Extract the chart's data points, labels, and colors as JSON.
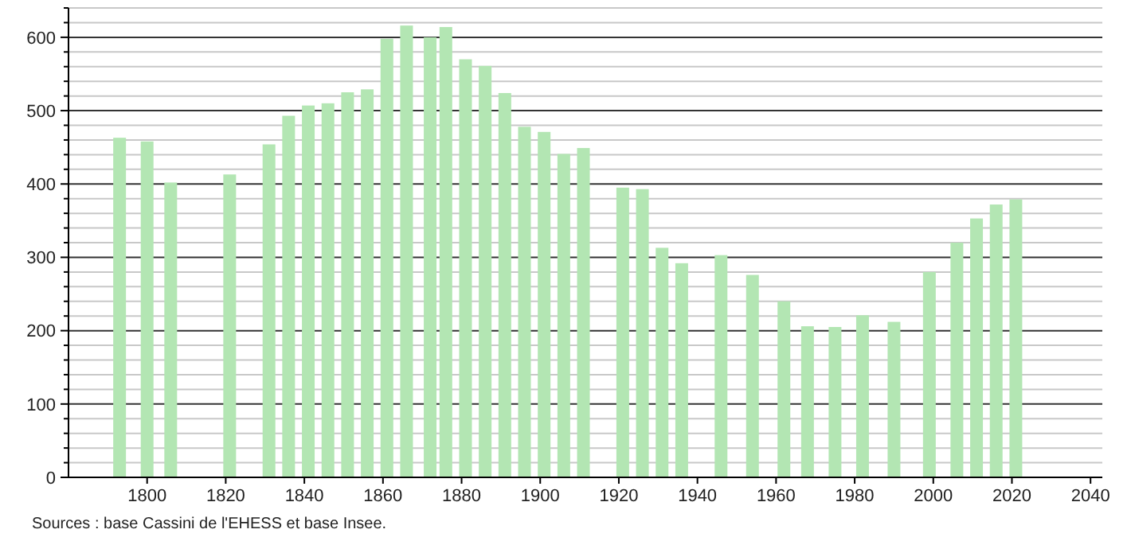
{
  "chart_data": {
    "type": "bar",
    "x": [
      1793,
      1800,
      1806,
      1821,
      1831,
      1836,
      1841,
      1846,
      1851,
      1856,
      1861,
      1866,
      1872,
      1876,
      1881,
      1886,
      1891,
      1896,
      1901,
      1906,
      1911,
      1921,
      1926,
      1931,
      1936,
      1946,
      1954,
      1962,
      1968,
      1975,
      1982,
      1990,
      1999,
      2006,
      2011,
      2016,
      2021
    ],
    "values": [
      463,
      458,
      402,
      413,
      454,
      493,
      507,
      510,
      525,
      529,
      598,
      616,
      600,
      614,
      570,
      561,
      524,
      478,
      471,
      441,
      449,
      395,
      393,
      313,
      292,
      303,
      276,
      240,
      206,
      205,
      221,
      212,
      280,
      320,
      353,
      372,
      379
    ],
    "color": "#b3e6b3",
    "xlim": [
      1780,
      2043
    ],
    "xticks": [
      1800,
      1820,
      1840,
      1860,
      1880,
      1900,
      1920,
      1940,
      1960,
      1980,
      2000,
      2020,
      2040
    ],
    "ylim": [
      0,
      640
    ],
    "yticks": [
      0,
      {
        "value": 20,
        "label": null
      },
      {
        "value": 40,
        "label": null
      },
      {
        "value": 60,
        "label": null
      },
      {
        "value": 80,
        "label": null
      },
      100,
      {
        "value": 120,
        "label": null
      },
      {
        "value": 140,
        "label": null
      },
      {
        "value": 160,
        "label": null
      },
      {
        "value": 180,
        "label": null
      },
      200,
      {
        "value": 220,
        "label": null
      },
      {
        "value": 240,
        "label": null
      },
      {
        "value": 260,
        "label": null
      },
      {
        "value": 280,
        "label": null
      },
      300,
      {
        "value": 320,
        "label": null
      },
      {
        "value": 340,
        "label": null
      },
      {
        "value": 360,
        "label": null
      },
      {
        "value": 380,
        "label": null
      },
      400,
      {
        "value": 420,
        "label": null
      },
      {
        "value": 440,
        "label": null
      },
      {
        "value": 460,
        "label": null
      },
      {
        "value": 480,
        "label": null
      },
      500,
      {
        "value": 520,
        "label": null
      },
      {
        "value": 540,
        "label": null
      },
      {
        "value": 560,
        "label": null
      },
      {
        "value": 580,
        "label": null
      },
      600,
      {
        "value": 620,
        "label": null
      },
      {
        "value": 640,
        "label": null
      }
    ],
    "grid": "y",
    "annotations": [
      "Sources : base Cassini de l'EHESS et base Insee."
    ]
  }
}
